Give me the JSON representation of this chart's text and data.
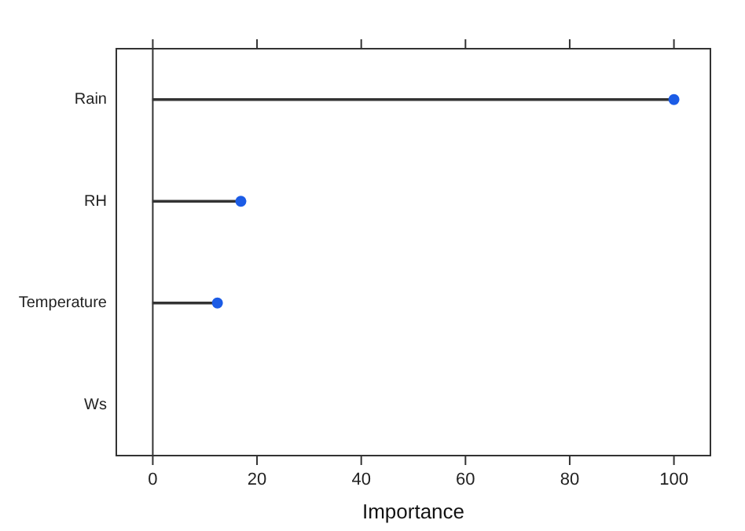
{
  "chart_data": {
    "type": "lollipop",
    "orientation": "horizontal",
    "xlabel": "Importance",
    "categories": [
      "Rain",
      "RH",
      "Temperature",
      "Ws"
    ],
    "values": [
      100,
      16.9,
      12.4,
      null
    ],
    "color": "#1c5ce6",
    "xlim": [
      -7,
      107
    ],
    "xticks": [
      0,
      20,
      40,
      60,
      80,
      100
    ],
    "ref_lines": [
      {
        "axis": "x",
        "value": 0,
        "color": "#333333"
      }
    ],
    "grid": false,
    "legend": false,
    "marker": "circle"
  }
}
